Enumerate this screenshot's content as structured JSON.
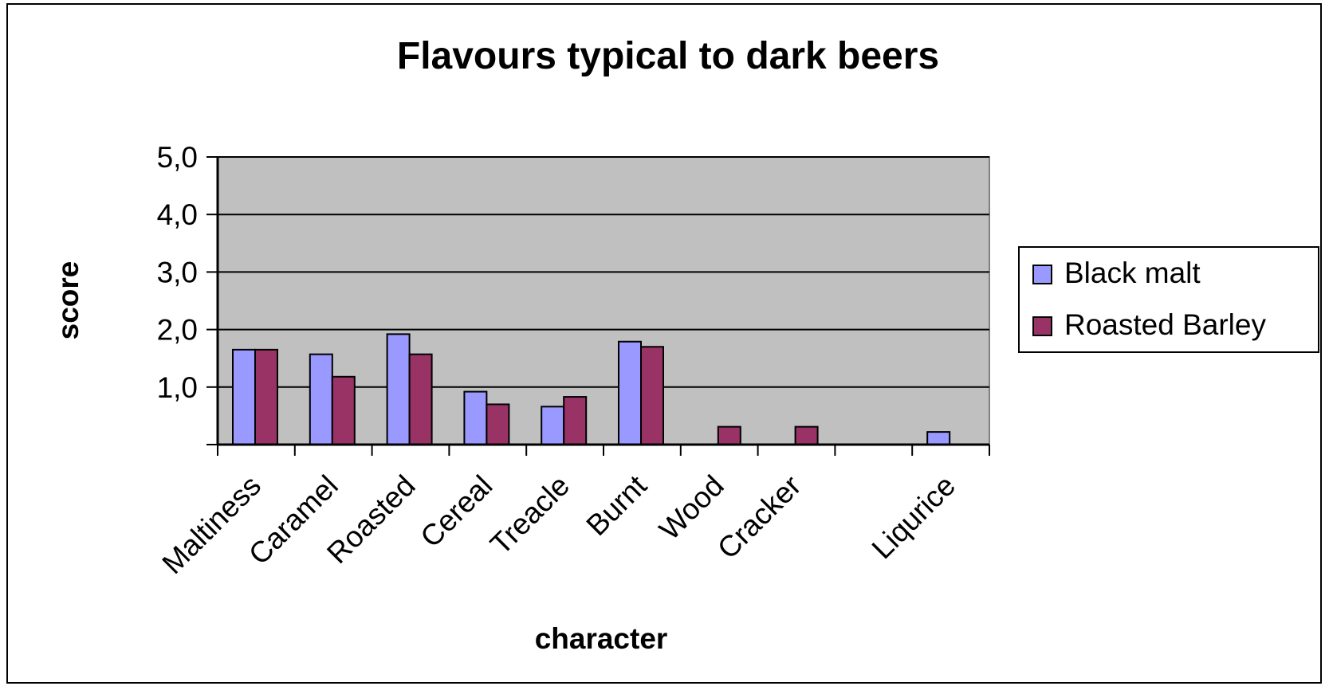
{
  "chart_data": {
    "type": "bar",
    "title": "Flavours typical to dark beers",
    "xlabel": "character",
    "ylabel": "score",
    "ylim": [
      0,
      5
    ],
    "yticks": [
      1,
      2,
      3,
      4,
      5
    ],
    "ytick_labels": [
      "1,0",
      "2,0",
      "3,0",
      "4,0",
      "5,0"
    ],
    "grid": true,
    "legend_position": "right",
    "slots": 10,
    "categories": [
      "Maltiness",
      "Caramel",
      "Roasted",
      "Cereal",
      "Treacle",
      "Burnt",
      "Wood",
      "Cracker",
      "",
      "Liqurice"
    ],
    "series": [
      {
        "name": "Black malt",
        "color": "#9999ff",
        "values": [
          1.65,
          1.57,
          1.92,
          0.92,
          0.66,
          1.79,
          0,
          0,
          0,
          0.22
        ]
      },
      {
        "name": "Roasted Barley",
        "color": "#993366",
        "values": [
          1.65,
          1.18,
          1.57,
          0.7,
          0.83,
          1.7,
          0.31,
          0.31,
          0,
          0
        ]
      }
    ],
    "plot_background": "#c0c0c0"
  }
}
